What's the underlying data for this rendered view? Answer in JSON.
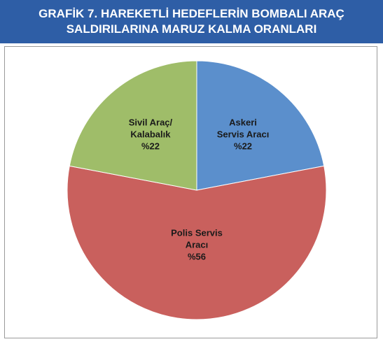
{
  "chart_data": {
    "type": "pie",
    "title": "GRAFİK 7. HAREKETLİ HEDEFLERİN BOMBALI ARAÇ\nSALDIRILARINA MARUZ KALMA ORANLARI",
    "categories": [
      "Askeri\nServis Aracı",
      "Polis Servis\nAracı",
      "Sivil Araç/\nKalabalık"
    ],
    "values": [
      22,
      56,
      22
    ],
    "value_labels": [
      "%22",
      "%56",
      "%22"
    ],
    "colors": [
      "#5b8fcc",
      "#c9605d",
      "#9fbd69"
    ]
  }
}
